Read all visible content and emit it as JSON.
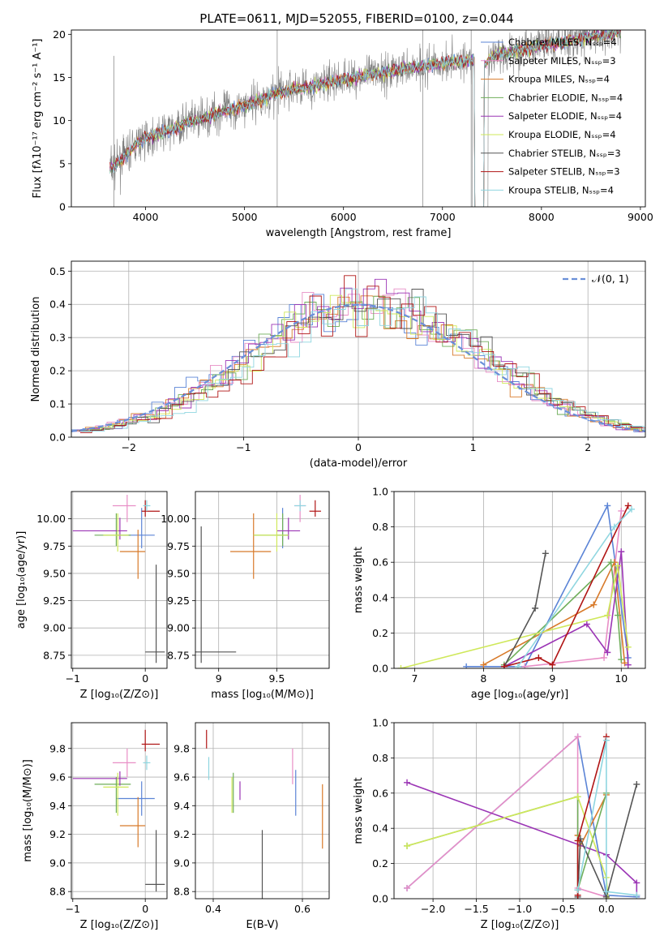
{
  "figure_title": "PLATE=0611, MJD=52055, FIBERID=0100, z=0.044",
  "colors": {
    "Chabrier MILES": "#5b84d6",
    "Salpeter MILES": "#e88ec6",
    "Kroupa MILES": "#d87a2a",
    "Chabrier ELODIE": "#6fae5a",
    "Salpeter ELODIE": "#9b35b5",
    "Kroupa ELODIE": "#cfe85a",
    "Chabrier STELIB": "#555555",
    "Salpeter STELIB": "#b01515",
    "Kroupa STELIB": "#8fd6e0",
    "observed": "#808080"
  },
  "chart_data": [
    {
      "type": "line",
      "title": "PLATE=0611, MJD=52055, FIBERID=0100, z=0.044",
      "xlabel": "wavelength [Angstrom, rest frame]",
      "ylabel": "Flux [fλ10⁻¹⁷ erg cm⁻² s⁻¹ A⁻¹]",
      "xlim": [
        3250,
        9050
      ],
      "ylim": [
        0,
        20.5
      ],
      "xticks": [
        4000,
        5000,
        6000,
        7000,
        8000,
        9000
      ],
      "yticks": [
        0,
        5,
        10,
        15,
        20
      ],
      "legend_location": "top-right",
      "legend": [
        "Chabrier MILES, Nₛₛₚ=4",
        "Salpeter MILES, Nₛₛₚ=3",
        "Kroupa MILES, Nₛₛₚ=4",
        "Chabrier ELODIE, Nₛₛₚ=4",
        "Salpeter ELODIE, Nₛₛₚ=4",
        "Kroupa ELODIE, Nₛₛₚ=4",
        "Chabrier STELIB, Nₛₛₚ=3",
        "Salpeter STELIB, Nₛₛₚ=3",
        "Kroupa STELIB, Nₛₛₚ=4"
      ],
      "spectrum_x": [
        3640,
        3700,
        3800,
        3900,
        4000,
        4100,
        4200,
        4300,
        4400,
        4500,
        4600,
        4700,
        4800,
        4900,
        5000,
        5100,
        5200,
        5300,
        5400,
        5500,
        5600,
        5700,
        5800,
        5900,
        6000,
        6100,
        6200,
        6300,
        6400,
        6500,
        6600,
        6700,
        6800,
        6900,
        7000,
        7100,
        7200,
        7300,
        7350,
        7400,
        7500,
        7600,
        7700,
        7800,
        7900,
        8000,
        8100,
        8200,
        8300,
        8400,
        8500,
        8600,
        8700,
        8800
      ],
      "spectrum_y": [
        4.5,
        4.8,
        6.0,
        7.2,
        8.0,
        8.3,
        8.8,
        9.0,
        9.7,
        10.0,
        10.3,
        10.8,
        11.2,
        11.3,
        11.8,
        12.2,
        12.6,
        13.0,
        13.4,
        13.7,
        13.8,
        14.0,
        14.3,
        14.5,
        14.8,
        15.0,
        15.2,
        15.4,
        15.6,
        15.8,
        16.0,
        16.2,
        16.3,
        16.5,
        16.7,
        16.8,
        16.9,
        17.0,
        17.2,
        16.0,
        17.5,
        17.8,
        18.0,
        18.3,
        18.5,
        18.7,
        18.9,
        19.1,
        19.3,
        19.5,
        19.7,
        19.9,
        20.1,
        20.3
      ]
    },
    {
      "type": "bar",
      "xlabel": "(data-model)/error",
      "ylabel": "Normed distribution",
      "xlim": [
        -2.5,
        2.5
      ],
      "ylim": [
        0,
        0.53
      ],
      "xticks": [
        -2,
        -1,
        0,
        1,
        2
      ],
      "yticks": [
        0.0,
        0.1,
        0.2,
        0.3,
        0.4,
        0.5
      ],
      "legend": [
        "𝒩(0, 1)"
      ],
      "legend_location": "top-right",
      "normal_curve": {
        "mean": 0,
        "sigma": 1
      },
      "bin_width": 0.1
    },
    {
      "type": "scatter",
      "xlabel": "Z [log₁₀(Z/Z⊙)]",
      "ylabel": "age  [log₁₀(age/yr)]",
      "xlim": [
        -1.02,
        0.3
      ],
      "ylim": [
        8.63,
        10.25
      ],
      "xticks": [
        -1,
        0
      ],
      "yticks": [
        8.75,
        9.0,
        9.25,
        9.5,
        9.75,
        10.0
      ],
      "points": [
        {
          "model": "Chabrier MILES",
          "x": -0.05,
          "xerr": [
            0.35,
            0.18
          ],
          "y": 9.85,
          "yerr": [
            0.12,
            0.25
          ]
        },
        {
          "model": "Salpeter MILES",
          "x": -0.25,
          "xerr": [
            0.2,
            0.12
          ],
          "y": 10.12,
          "yerr": [
            0.15,
            0.1
          ]
        },
        {
          "model": "Kroupa MILES",
          "x": -0.1,
          "xerr": [
            0.25,
            0.1
          ],
          "y": 9.7,
          "yerr": [
            0.25,
            0.2
          ]
        },
        {
          "model": "Chabrier ELODIE",
          "x": -0.4,
          "xerr": [
            0.3,
            0.2
          ],
          "y": 9.85,
          "yerr": [
            0.1,
            0.2
          ]
        },
        {
          "model": "Salpeter ELODIE",
          "x": -0.35,
          "xerr": [
            0.65,
            0.1
          ],
          "y": 9.89,
          "yerr": [
            0.08,
            0.12
          ]
        },
        {
          "model": "Kroupa ELODIE",
          "x": -0.38,
          "xerr": [
            0.2,
            0.15
          ],
          "y": 9.85,
          "yerr": [
            0.15,
            0.2
          ]
        },
        {
          "model": "Chabrier STELIB",
          "x": 0.15,
          "xerr": [
            0.15,
            0.12
          ],
          "y": 8.78,
          "yerr": [
            0.1,
            0.8
          ]
        },
        {
          "model": "Salpeter STELIB",
          "x": 0.0,
          "xerr": [
            0.05,
            0.2
          ],
          "y": 10.07,
          "yerr": [
            0.05,
            0.1
          ]
        },
        {
          "model": "Kroupa STELIB",
          "x": 0.02,
          "xerr": [
            0.05,
            0.05
          ],
          "y": 10.12,
          "yerr": [
            0.05,
            0.05
          ]
        }
      ]
    },
    {
      "type": "scatter",
      "xlabel": "mass [log₁₀(M/M⊙)]",
      "ylabel": "",
      "xlim": [
        8.8,
        9.95
      ],
      "ylim": [
        8.63,
        10.25
      ],
      "xticks": [
        9.0,
        9.5
      ],
      "yticks": [
        8.75,
        9.0,
        9.25,
        9.5,
        9.75,
        10.0
      ],
      "points": [
        {
          "model": "Chabrier MILES",
          "x": 9.55,
          "xerr": [
            0.05,
            0.05
          ],
          "y": 9.85,
          "yerr": [
            0.12,
            0.25
          ]
        },
        {
          "model": "Salpeter MILES",
          "x": 9.7,
          "xerr": [
            0.05,
            0.05
          ],
          "y": 10.12,
          "yerr": [
            0.15,
            0.1
          ]
        },
        {
          "model": "Kroupa MILES",
          "x": 9.3,
          "xerr": [
            0.2,
            0.15
          ],
          "y": 9.7,
          "yerr": [
            0.25,
            0.35
          ]
        },
        {
          "model": "Chabrier ELODIE",
          "x": 9.55,
          "xerr": [
            0.25,
            0.05
          ],
          "y": 9.85,
          "yerr": [
            0.1,
            0.2
          ]
        },
        {
          "model": "Salpeter ELODIE",
          "x": 9.6,
          "xerr": [
            0.1,
            0.1
          ],
          "y": 9.89,
          "yerr": [
            0.08,
            0.12
          ]
        },
        {
          "model": "Kroupa ELODIE",
          "x": 9.5,
          "xerr": [
            0.2,
            0.1
          ],
          "y": 9.85,
          "yerr": [
            0.15,
            0.2
          ]
        },
        {
          "model": "Chabrier STELIB",
          "x": 8.85,
          "xerr": [
            0.05,
            0.3
          ],
          "y": 8.78,
          "yerr": [
            0.1,
            1.15
          ]
        },
        {
          "model": "Salpeter STELIB",
          "x": 9.83,
          "xerr": [
            0.05,
            0.05
          ],
          "y": 10.07,
          "yerr": [
            0.05,
            0.1
          ]
        },
        {
          "model": "Kroupa STELIB",
          "x": 9.7,
          "xerr": [
            0.05,
            0.05
          ],
          "y": 10.12,
          "yerr": [
            0.05,
            0.05
          ]
        }
      ]
    },
    {
      "type": "line",
      "xlabel": "age  [log₁₀(age/yr)]",
      "ylabel": "mass weight",
      "xlim": [
        6.7,
        10.35
      ],
      "ylim": [
        0,
        1.0
      ],
      "xticks": [
        7,
        8,
        9,
        10
      ],
      "yticks": [
        0.0,
        0.2,
        0.4,
        0.6,
        0.8,
        1.0
      ],
      "series": [
        {
          "model": "Chabrier MILES",
          "x": [
            7.75,
            8.6,
            9.8,
            10.1
          ],
          "y": [
            0.01,
            0.01,
            0.92,
            0.06
          ]
        },
        {
          "model": "Salpeter MILES",
          "x": [
            8.6,
            9.75,
            10.0
          ],
          "y": [
            0.01,
            0.06,
            0.89
          ]
        },
        {
          "model": "Kroupa MILES",
          "x": [
            8.0,
            9.6,
            9.9,
            10.05
          ],
          "y": [
            0.02,
            0.36,
            0.6,
            0.03
          ]
        },
        {
          "model": "Chabrier ELODIE",
          "x": [
            8.3,
            9.85,
            9.95,
            10.0
          ],
          "y": [
            0.02,
            0.6,
            0.3,
            0.05
          ]
        },
        {
          "model": "Salpeter ELODIE",
          "x": [
            8.3,
            9.5,
            9.8,
            10.0,
            10.1
          ],
          "y": [
            0.01,
            0.25,
            0.09,
            0.66,
            0.02
          ]
        },
        {
          "model": "Kroupa ELODIE",
          "x": [
            6.8,
            9.8,
            9.95,
            10.1
          ],
          "y": [
            0.0,
            0.3,
            0.58,
            0.12
          ]
        },
        {
          "model": "Chabrier STELIB",
          "x": [
            8.3,
            8.75,
            8.9
          ],
          "y": [
            0.01,
            0.34,
            0.65
          ]
        },
        {
          "model": "Salpeter STELIB",
          "x": [
            8.3,
            8.8,
            9.0,
            10.1
          ],
          "y": [
            0.01,
            0.06,
            0.02,
            0.92
          ]
        },
        {
          "model": "Kroupa STELIB",
          "x": [
            8.5,
            9.9,
            10.15
          ],
          "y": [
            0.01,
            0.8,
            0.9
          ]
        }
      ]
    },
    {
      "type": "scatter",
      "xlabel": "Z [log₁₀(Z/Z⊙)]",
      "ylabel": "mass [log₁₀(M/M⊙)]",
      "xlim": [
        -1.02,
        0.3
      ],
      "ylim": [
        8.75,
        9.98
      ],
      "xticks": [
        -1,
        0
      ],
      "yticks": [
        8.8,
        9.0,
        9.2,
        9.4,
        9.6,
        9.8
      ],
      "points": [
        {
          "model": "Chabrier MILES",
          "x": -0.05,
          "xerr": [
            0.35,
            0.18
          ],
          "y": 9.45,
          "yerr": [
            0.12,
            0.12
          ]
        },
        {
          "model": "Salpeter MILES",
          "x": -0.25,
          "xerr": [
            0.2,
            0.12
          ],
          "y": 9.7,
          "yerr": [
            0.1,
            0.1
          ]
        },
        {
          "model": "Kroupa MILES",
          "x": -0.1,
          "xerr": [
            0.25,
            0.1
          ],
          "y": 9.26,
          "yerr": [
            0.15,
            0.2
          ]
        },
        {
          "model": "Chabrier ELODIE",
          "x": -0.4,
          "xerr": [
            0.3,
            0.2
          ],
          "y": 9.55,
          "yerr": [
            0.2,
            0.05
          ]
        },
        {
          "model": "Salpeter ELODIE",
          "x": -0.35,
          "xerr": [
            0.65,
            0.1
          ],
          "y": 9.59,
          "yerr": [
            0.05,
            0.05
          ]
        },
        {
          "model": "Kroupa ELODIE",
          "x": -0.38,
          "xerr": [
            0.2,
            0.15
          ],
          "y": 9.53,
          "yerr": [
            0.2,
            0.1
          ]
        },
        {
          "model": "Chabrier STELIB",
          "x": 0.15,
          "xerr": [
            0.15,
            0.12
          ],
          "y": 8.85,
          "yerr": [
            0.05,
            0.38
          ]
        },
        {
          "model": "Salpeter STELIB",
          "x": 0.0,
          "xerr": [
            0.05,
            0.2
          ],
          "y": 9.83,
          "yerr": [
            0.05,
            0.1
          ]
        },
        {
          "model": "Kroupa STELIB",
          "x": 0.02,
          "xerr": [
            0.05,
            0.05
          ],
          "y": 9.7,
          "yerr": [
            0.05,
            0.05
          ]
        }
      ]
    },
    {
      "type": "scatter",
      "xlabel": "E(B-V)",
      "ylabel": "",
      "xlim": [
        0.36,
        0.66
      ],
      "ylim": [
        8.75,
        9.98
      ],
      "xticks": [
        0.4,
        0.6
      ],
      "yticks": [
        8.8,
        9.0,
        9.2,
        9.4,
        9.6,
        9.8
      ],
      "points": [
        {
          "model": "Chabrier MILES",
          "x": 0.585,
          "xerr": [
            0,
            0
          ],
          "y": 9.45,
          "yerr": [
            0.12,
            0.2
          ]
        },
        {
          "model": "Salpeter MILES",
          "x": 0.578,
          "xerr": [
            0,
            0
          ],
          "y": 9.7,
          "yerr": [
            0.15,
            0.1
          ]
        },
        {
          "model": "Kroupa MILES",
          "x": 0.645,
          "xerr": [
            0,
            0
          ],
          "y": 9.3,
          "yerr": [
            0.2,
            0.25
          ]
        },
        {
          "model": "Chabrier ELODIE",
          "x": 0.445,
          "xerr": [
            0,
            0
          ],
          "y": 9.55,
          "yerr": [
            0.2,
            0.08
          ]
        },
        {
          "model": "Salpeter ELODIE",
          "x": 0.46,
          "xerr": [
            0,
            0
          ],
          "y": 9.49,
          "yerr": [
            0.05,
            0.08
          ]
        },
        {
          "model": "Kroupa ELODIE",
          "x": 0.442,
          "xerr": [
            0,
            0
          ],
          "y": 9.45,
          "yerr": [
            0.1,
            0.15
          ]
        },
        {
          "model": "Chabrier STELIB",
          "x": 0.51,
          "xerr": [
            0,
            0
          ],
          "y": 8.85,
          "yerr": [
            0.1,
            0.38
          ]
        },
        {
          "model": "Salpeter STELIB",
          "x": 0.385,
          "xerr": [
            0,
            0
          ],
          "y": 9.85,
          "yerr": [
            0.05,
            0.08
          ]
        },
        {
          "model": "Kroupa STELIB",
          "x": 0.39,
          "xerr": [
            0,
            0
          ],
          "y": 9.66,
          "yerr": [
            0.08,
            0.08
          ]
        }
      ]
    },
    {
      "type": "line",
      "xlabel": "Z [log₁₀(Z/Z⊙)]",
      "ylabel": "mass weight",
      "xlim": [
        -2.45,
        0.45
      ],
      "ylim": [
        0,
        1.0
      ],
      "xticks": [
        -2.0,
        -1.5,
        -1.0,
        -0.5,
        0.0
      ],
      "yticks": [
        0.0,
        0.2,
        0.4,
        0.6,
        0.8,
        1.0
      ],
      "series": [
        {
          "model": "Chabrier MILES",
          "x": [
            -2.3,
            -0.33,
            0.0,
            0.35
          ],
          "y": [
            0.06,
            0.92,
            0.02,
            0.01
          ]
        },
        {
          "model": "Salpeter MILES",
          "x": [
            -2.3,
            -0.33,
            -0.33,
            0.0
          ],
          "y": [
            0.06,
            0.92,
            0.06,
            0.01
          ]
        },
        {
          "model": "Kroupa MILES",
          "x": [
            -0.33,
            -0.3,
            0.0
          ],
          "y": [
            0.36,
            0.3,
            0.59
          ]
        },
        {
          "model": "Chabrier ELODIE",
          "x": [
            -2.3,
            -0.33,
            -0.33,
            0.0
          ],
          "y": [
            0.3,
            0.58,
            0.05,
            0.6
          ]
        },
        {
          "model": "Salpeter ELODIE",
          "x": [
            -2.3,
            0.0,
            0.35,
            0.35
          ],
          "y": [
            0.66,
            0.25,
            0.09,
            0.02
          ]
        },
        {
          "model": "Kroupa ELODIE",
          "x": [
            -2.3,
            -0.33,
            0.0,
            0.02
          ],
          "y": [
            0.3,
            0.58,
            0.12,
            0.0
          ]
        },
        {
          "model": "Chabrier STELIB",
          "x": [
            -0.33,
            -0.3,
            0.0,
            0.35
          ],
          "y": [
            0.01,
            0.34,
            0.01,
            0.65
          ]
        },
        {
          "model": "Salpeter STELIB",
          "x": [
            -0.33,
            -0.33,
            0.0
          ],
          "y": [
            0.02,
            0.33,
            0.92
          ]
        },
        {
          "model": "Kroupa STELIB",
          "x": [
            -0.33,
            0.0,
            0.0,
            0.35
          ],
          "y": [
            0.05,
            0.9,
            0.04,
            0.02
          ]
        }
      ]
    }
  ]
}
